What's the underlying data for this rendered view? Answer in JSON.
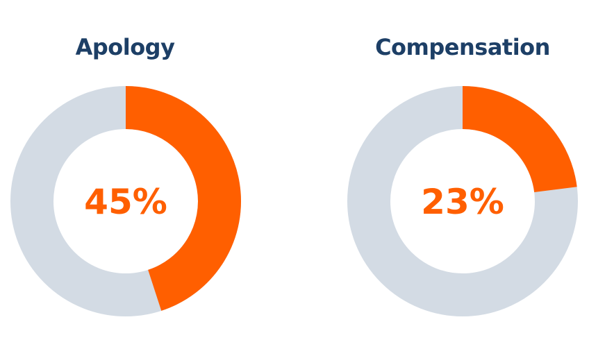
{
  "colors": {
    "title": "#1d3f66",
    "filled": "#ff5f00",
    "remainder": "#d3dbe4",
    "value_text": "#ff5f00"
  },
  "chart_data": [
    {
      "type": "pie",
      "title": "Apology",
      "values": [
        45,
        55
      ],
      "label": "45%"
    },
    {
      "type": "pie",
      "title": "Compensation",
      "values": [
        23,
        77
      ],
      "label": "23%"
    }
  ]
}
